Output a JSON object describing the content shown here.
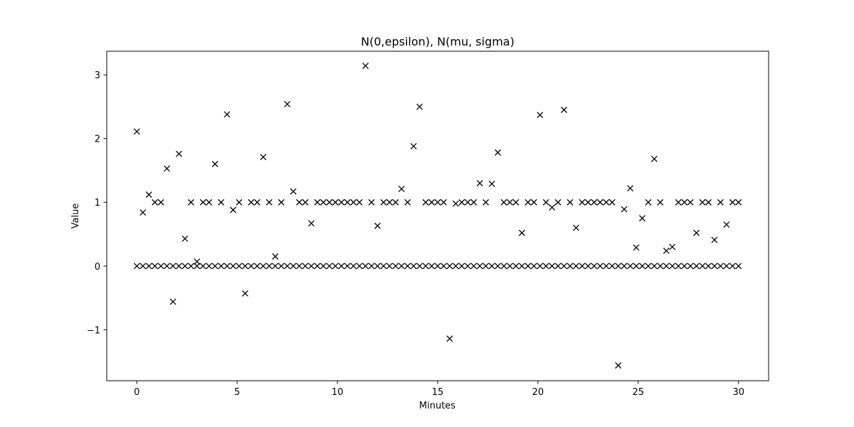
{
  "chart_data": {
    "type": "scatter",
    "title": "N(0,epsilon), N(mu, sigma)",
    "xlabel": "Minutes",
    "ylabel": "Value",
    "xlim": [
      -1.5,
      31.5
    ],
    "ylim": [
      -1.8,
      3.37
    ],
    "xticks": [
      0,
      5,
      10,
      15,
      20,
      25,
      30
    ],
    "xtick_labels": [
      "0",
      "5",
      "10",
      "15",
      "20",
      "25",
      "30"
    ],
    "yticks": [
      -1,
      0,
      1,
      2,
      3
    ],
    "ytick_labels": [
      "−1",
      "0",
      "1",
      "2",
      "3"
    ],
    "grid": false,
    "marker": "x",
    "marker_color": "#000000",
    "series": [
      {
        "x": [
          0,
          0.3,
          0.6,
          0.9,
          1.2,
          1.5,
          1.8,
          2.1,
          2.4,
          2.7,
          3.0,
          3.3,
          3.6,
          3.9,
          4.2,
          4.5,
          4.8,
          5.1,
          5.4,
          5.7,
          6.0,
          6.3,
          6.6,
          6.9,
          7.2,
          7.5,
          7.8,
          8.1,
          8.4,
          8.7,
          9.0,
          9.3,
          9.6,
          9.9,
          10.2,
          10.5,
          10.8,
          11.1,
          11.4,
          11.7,
          12.0,
          12.3,
          12.6,
          12.9,
          13.2,
          13.5,
          13.8,
          14.1,
          14.4,
          14.7,
          15.0,
          15.3,
          15.6,
          15.9,
          16.2,
          16.5,
          16.8,
          17.1,
          17.4,
          17.7,
          18.0,
          18.3,
          18.6,
          18.9,
          19.2,
          19.5,
          19.8,
          20.1,
          20.4,
          20.7,
          21.0,
          21.3,
          21.6,
          21.9,
          22.2,
          22.5,
          22.8,
          23.1,
          23.4,
          23.7,
          24.0,
          24.3,
          24.6,
          24.9,
          25.2,
          25.5,
          25.8,
          26.1,
          26.4,
          26.7,
          27.0,
          27.3,
          27.6,
          27.9,
          28.2,
          28.5,
          28.8,
          29.1,
          29.4,
          29.7,
          30.0
        ],
        "y": [
          0,
          0,
          0,
          0,
          0,
          0,
          0,
          0,
          0,
          0,
          0,
          0,
          0,
          0,
          0,
          0,
          0,
          0,
          0,
          0,
          0,
          0,
          0,
          0,
          0,
          0,
          0,
          0,
          0,
          0,
          0,
          0,
          0,
          0,
          0,
          0,
          0,
          0,
          0,
          0,
          0,
          0,
          0,
          0,
          0,
          0,
          0,
          0,
          0,
          0,
          0,
          0,
          0,
          0,
          0,
          0,
          0,
          0,
          0,
          0,
          0,
          0,
          0,
          0,
          0,
          0,
          0,
          0,
          0,
          0,
          0,
          0,
          0,
          0,
          0,
          0,
          0,
          0,
          0,
          0,
          0,
          0,
          0,
          0,
          0,
          0,
          0,
          0,
          0,
          0,
          0,
          0,
          0,
          0,
          0,
          0,
          0,
          0,
          0,
          0,
          0
        ]
      },
      {
        "x": [
          0,
          0.3,
          0.6,
          0.9,
          1.2,
          1.5,
          1.8,
          2.1,
          2.4,
          2.7,
          3.0,
          3.3,
          3.6,
          3.9,
          4.2,
          4.5,
          4.8,
          5.1,
          5.4,
          5.7,
          6.0,
          6.3,
          6.6,
          6.9,
          7.2,
          7.5,
          7.8,
          8.1,
          8.4,
          8.7,
          9.0,
          9.3,
          9.6,
          9.9,
          10.2,
          10.5,
          10.8,
          11.1,
          11.4,
          11.7,
          12.0,
          12.3,
          12.6,
          12.9,
          13.2,
          13.5,
          13.8,
          14.1,
          14.4,
          14.7,
          15.0,
          15.3,
          15.6,
          15.9,
          16.2,
          16.5,
          16.8,
          17.1,
          17.4,
          17.7,
          18.0,
          18.3,
          18.6,
          18.9,
          19.2,
          19.5,
          19.8,
          20.1,
          20.4,
          20.7,
          21.0,
          21.3,
          21.6,
          21.9,
          22.2,
          22.5,
          22.8,
          23.1,
          23.4,
          23.7,
          24.0,
          24.3,
          24.6,
          24.9,
          25.2,
          25.5,
          25.8,
          26.1,
          26.4,
          26.7,
          27.0,
          27.3,
          27.6,
          27.9,
          28.2,
          28.5,
          28.8,
          29.1,
          29.4,
          29.7,
          30.0
        ],
        "y": [
          2.11,
          0.84,
          1.12,
          1.0,
          1.0,
          1.53,
          -0.56,
          1.76,
          0.43,
          1.0,
          0.07,
          1.0,
          1.0,
          1.6,
          1.0,
          2.38,
          0.88,
          1.0,
          -0.43,
          1.0,
          1.0,
          1.71,
          1.0,
          0.15,
          1.0,
          2.54,
          1.17,
          1.0,
          1.0,
          0.67,
          1.0,
          1.0,
          1.0,
          1.0,
          1.0,
          1.0,
          1.0,
          1.0,
          3.14,
          1.0,
          0.63,
          1.0,
          1.0,
          1.0,
          1.21,
          1.0,
          1.88,
          2.5,
          1.0,
          1.0,
          1.0,
          1.0,
          -1.14,
          0.98,
          1.0,
          1.0,
          1.0,
          1.3,
          1.0,
          1.29,
          1.78,
          1.0,
          1.0,
          1.0,
          0.52,
          1.0,
          1.0,
          2.37,
          1.0,
          0.92,
          1.0,
          2.45,
          1.0,
          0.6,
          1.0,
          1.0,
          1.0,
          1.0,
          1.0,
          1.0,
          -1.56,
          0.89,
          1.22,
          0.29,
          0.75,
          1.0,
          1.68,
          1.0,
          0.24,
          0.3,
          1.0,
          1.0,
          1.0,
          0.52,
          1.0,
          1.0,
          0.41,
          1.0,
          0.65,
          1.0,
          1.0
        ]
      }
    ]
  }
}
